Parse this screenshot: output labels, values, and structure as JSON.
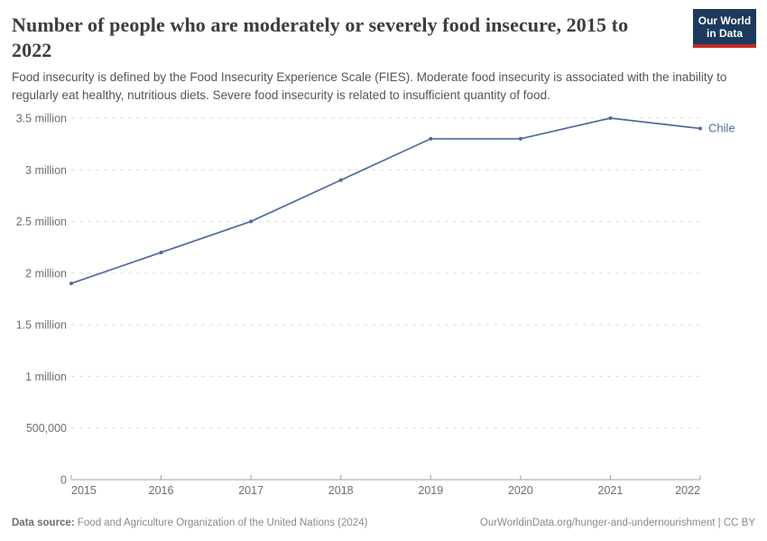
{
  "header": {
    "title": "Number of people who are moderately or severely food insecure, 2015 to 2022",
    "subtitle": "Food insecurity is defined by the Food Insecurity Experience Scale (FIES). Moderate food insecurity is associated with the inability to regularly eat healthy, nutritious diets. Severe food insecurity is related to insufficient quantity of food."
  },
  "logo": {
    "line1": "Our World",
    "line2": "in Data",
    "background_color": "#1b3a5c",
    "accent_color": "#bf2b26"
  },
  "chart_data": {
    "type": "line",
    "title": "Number of people who are moderately or severely food insecure, 2015 to 2022",
    "x": [
      2015,
      2016,
      2017,
      2018,
      2019,
      2020,
      2021,
      2022
    ],
    "series": [
      {
        "name": "Chile",
        "values": [
          1900000,
          2200000,
          2500000,
          2900000,
          3300000,
          3300000,
          3500000,
          3400000
        ],
        "color": "#4c6a9e"
      }
    ],
    "ylim": [
      0,
      3500000
    ],
    "ytick_values": [
      0,
      500000,
      1000000,
      1500000,
      2000000,
      2500000,
      3000000,
      3500000
    ],
    "ytick_labels": [
      "0",
      "500,000",
      "1 million",
      "1.5 million",
      "2 million",
      "2.5 million",
      "3 million",
      "3.5 million"
    ],
    "xlabel": "",
    "ylabel": "",
    "grid": "horizontal-dashed",
    "legend_position": "end-of-line-label"
  },
  "footer": {
    "datasource_label": "Data source:",
    "datasource_text": "Food and Agriculture Organization of the United Nations (2024)",
    "attribution": "OurWorldinData.org/hunger-and-undernourishment | CC BY"
  }
}
